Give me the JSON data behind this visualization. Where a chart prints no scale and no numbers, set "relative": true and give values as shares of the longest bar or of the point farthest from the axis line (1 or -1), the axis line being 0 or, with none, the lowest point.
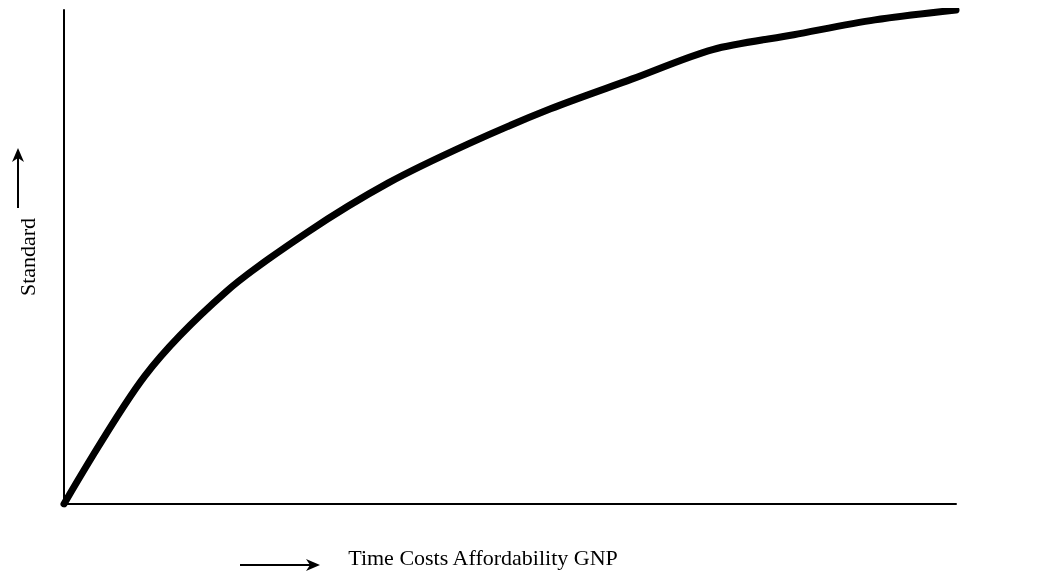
{
  "chart_data": {
    "type": "line",
    "relative": true,
    "xlabel": "Time Costs Affordability GNP",
    "ylabel": "Standard",
    "categories": [
      null,
      null,
      null,
      null,
      null,
      null,
      null,
      null,
      null,
      null,
      null,
      null
    ],
    "series": [
      {
        "color": "#000000",
        "values": [
          0,
          0.26,
          0.43,
          0.55,
          0.65,
          0.73,
          0.8,
          0.86,
          0.92,
          0.95,
          0.98,
          1
        ]
      }
    ],
    "marker": "none",
    "line_style": "solid"
  }
}
